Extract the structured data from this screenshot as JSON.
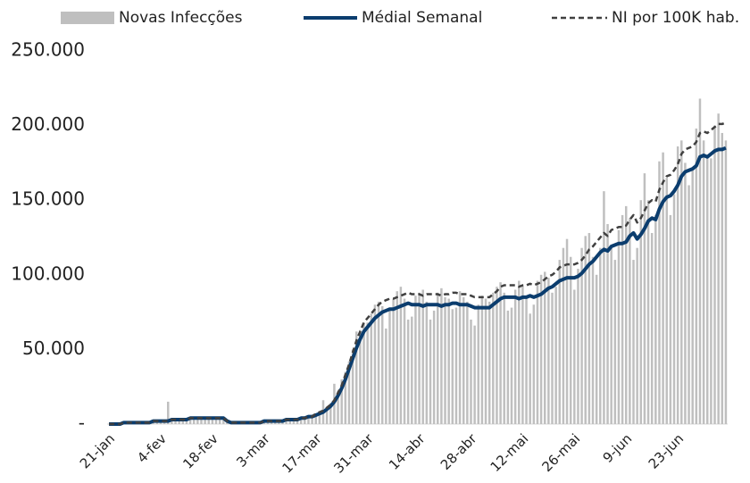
{
  "chart_data": {
    "type": "bar",
    "categories": [
      "21-jan",
      null,
      null,
      null,
      null,
      null,
      null,
      null,
      null,
      null,
      null,
      null,
      null,
      null,
      "4-fev",
      null,
      null,
      null,
      null,
      null,
      null,
      null,
      null,
      null,
      null,
      null,
      null,
      null,
      "18-fev",
      null,
      null,
      null,
      null,
      null,
      null,
      null,
      null,
      null,
      null,
      null,
      null,
      null,
      "3-mar",
      null,
      null,
      null,
      null,
      null,
      null,
      null,
      null,
      null,
      null,
      null,
      null,
      null,
      "17-mar",
      null,
      null,
      null,
      null,
      null,
      null,
      null,
      null,
      null,
      null,
      null,
      null,
      null,
      "31-mar",
      null,
      null,
      null,
      null,
      null,
      null,
      null,
      null,
      null,
      null,
      null,
      null,
      null,
      "14-abr",
      null,
      null,
      null,
      null,
      null,
      null,
      null,
      null,
      null,
      null,
      null,
      null,
      null,
      "28-abr",
      null,
      null,
      null,
      null,
      null,
      null,
      null,
      null,
      null,
      null,
      null,
      null,
      null,
      "12-mai",
      null,
      null,
      null,
      null,
      null,
      null,
      null,
      null,
      null,
      null,
      null,
      null,
      null,
      "26-mai",
      null,
      null,
      null,
      null,
      null,
      null,
      null,
      null,
      null,
      null,
      null,
      null,
      null,
      "9-jun",
      null,
      null,
      null,
      null,
      null,
      null,
      null,
      null,
      null,
      null,
      null,
      null,
      null,
      "23-jun",
      null,
      null,
      null,
      null,
      null,
      null,
      null,
      null,
      null,
      null,
      null,
      null,
      null
    ],
    "series": [
      {
        "name": "Novas Infecções",
        "type": "bar",
        "color": "#bfbfbf",
        "values": [
          0,
          0,
          0,
          1000,
          1000,
          1000,
          2000,
          1000,
          1000,
          1000,
          1000,
          2000,
          2000,
          2000,
          2000,
          3000,
          15000,
          3000,
          3000,
          3000,
          4000,
          4000,
          5000,
          4000,
          4000,
          4000,
          5000,
          4000,
          5000,
          4000,
          4000,
          4000,
          1000,
          1000,
          1000,
          1000,
          1000,
          1000,
          1000,
          1000,
          2000,
          1000,
          2000,
          2000,
          2000,
          2000,
          3000,
          2000,
          3000,
          3000,
          4000,
          3000,
          4000,
          5000,
          6000,
          5000,
          7000,
          8000,
          16000,
          11000,
          14000,
          27000,
          22000,
          30000,
          35000,
          42000,
          50000,
          62000,
          63000,
          68000,
          68000,
          74000,
          80000,
          82000,
          79000,
          64000,
          76000,
          84000,
          89000,
          92000,
          84000,
          70000,
          72000,
          86000,
          88000,
          90000,
          82000,
          70000,
          76000,
          88000,
          91000,
          85000,
          84000,
          77000,
          78000,
          89000,
          85000,
          82000,
          70000,
          66000,
          80000,
          86000,
          84000,
          82000,
          88000,
          92000,
          95000,
          88000,
          76000,
          78000,
          90000,
          96000,
          93000,
          86000,
          74000,
          80000,
          96000,
          100000,
          102000,
          98000,
          88000,
          92000,
          110000,
          118000,
          124000,
          112000,
          90000,
          104000,
          118000,
          126000,
          128000,
          112000,
          100000,
          118000,
          156000,
          134000,
          118000,
          110000,
          130000,
          140000,
          146000,
          138000,
          110000,
          118000,
          150000,
          168000,
          150000,
          128000,
          140000,
          176000,
          182000,
          165000,
          140000,
          154000,
          186000,
          190000,
          175000,
          160000,
          172000,
          198000,
          218000,
          190000,
          180000,
          178000,
          200000,
          208000,
          195000,
          190000
        ]
      },
      {
        "name": "Médial Semanal",
        "type": "line",
        "color": "#0b3d6e",
        "values": [
          0,
          0,
          0,
          0,
          1000,
          1000,
          1000,
          1000,
          1000,
          1000,
          1000,
          1000,
          2000,
          2000,
          2000,
          2000,
          2000,
          3000,
          3000,
          3000,
          3000,
          3000,
          4000,
          4000,
          4000,
          4000,
          4000,
          4000,
          4000,
          4000,
          4000,
          4000,
          2000,
          1000,
          1000,
          1000,
          1000,
          1000,
          1000,
          1000,
          1000,
          1000,
          2000,
          2000,
          2000,
          2000,
          2000,
          2000,
          3000,
          3000,
          3000,
          3000,
          4000,
          4000,
          5000,
          5000,
          6000,
          7000,
          8000,
          10000,
          12000,
          15000,
          19000,
          24000,
          30000,
          37000,
          44000,
          51000,
          57000,
          62000,
          65000,
          68000,
          71000,
          73000,
          75000,
          76000,
          77000,
          77000,
          78000,
          79000,
          80000,
          81000,
          80000,
          80000,
          80000,
          79000,
          80000,
          80000,
          80000,
          80000,
          79000,
          80000,
          80000,
          81000,
          81000,
          80000,
          80000,
          80000,
          79000,
          78000,
          78000,
          78000,
          78000,
          78000,
          80000,
          82000,
          84000,
          85000,
          85000,
          85000,
          85000,
          84000,
          85000,
          85000,
          86000,
          85000,
          86000,
          87000,
          89000,
          91000,
          92000,
          94000,
          96000,
          97000,
          98000,
          98000,
          98000,
          99000,
          101000,
          104000,
          107000,
          109000,
          112000,
          115000,
          117000,
          116000,
          119000,
          120000,
          121000,
          121000,
          122000,
          126000,
          128000,
          124000,
          127000,
          131000,
          136000,
          138000,
          137000,
          144000,
          149000,
          152000,
          153000,
          156000,
          160000,
          166000,
          169000,
          170000,
          171000,
          173000,
          179000,
          180000,
          179000,
          181000,
          183000,
          184000,
          184000,
          185000
        ]
      },
      {
        "name": "NI por 100K hab.",
        "type": "line",
        "line_style": "dashed",
        "color": "#404040",
        "values": [
          0,
          0,
          0,
          0,
          1000,
          1000,
          1000,
          1000,
          1000,
          1000,
          1000,
          1000,
          2000,
          2000,
          2000,
          2000,
          2000,
          3000,
          3000,
          3000,
          3000,
          3000,
          4000,
          4000,
          4000,
          4000,
          4000,
          4000,
          4000,
          4000,
          4000,
          4000,
          2000,
          1000,
          1000,
          1000,
          1000,
          1000,
          1000,
          1000,
          1000,
          1000,
          2000,
          2000,
          2000,
          2000,
          2000,
          2000,
          3000,
          3000,
          3000,
          3000,
          4000,
          4000,
          5000,
          5000,
          7000,
          8000,
          9000,
          11000,
          13000,
          16000,
          21000,
          26000,
          33000,
          40000,
          48000,
          56000,
          62000,
          68000,
          71000,
          74000,
          77000,
          80000,
          82000,
          83000,
          84000,
          84000,
          85000,
          86000,
          87000,
          88000,
          87000,
          87000,
          87000,
          86000,
          87000,
          87000,
          87000,
          87000,
          86000,
          87000,
          87000,
          88000,
          88000,
          87000,
          87000,
          87000,
          86000,
          85000,
          85000,
          85000,
          85000,
          85000,
          87000,
          89000,
          92000,
          93000,
          93000,
          93000,
          93000,
          92000,
          93000,
          93000,
          94000,
          93000,
          94000,
          95000,
          97000,
          99000,
          100000,
          102000,
          105000,
          106000,
          107000,
          107000,
          107000,
          108000,
          110000,
          113000,
          117000,
          119000,
          122000,
          125000,
          128000,
          126000,
          130000,
          131000,
          132000,
          132000,
          133000,
          137000,
          140000,
          135000,
          138000,
          143000,
          148000,
          150000,
          149000,
          157000,
          162000,
          166000,
          167000,
          170000,
          174000,
          181000,
          184000,
          185000,
          186000,
          189000,
          195000,
          196000,
          195000,
          197000,
          199000,
          201000,
          201000,
          202000
        ]
      }
    ],
    "ylim": [
      0,
      250000
    ],
    "yticks": [
      {
        "value": 0,
        "label": "-"
      },
      {
        "value": 50000,
        "label": "50.000"
      },
      {
        "value": 100000,
        "label": "100.000"
      },
      {
        "value": 150000,
        "label": "150.000"
      },
      {
        "value": 200000,
        "label": "200.000"
      },
      {
        "value": 250000,
        "label": "250.000"
      }
    ],
    "legend": "top"
  }
}
